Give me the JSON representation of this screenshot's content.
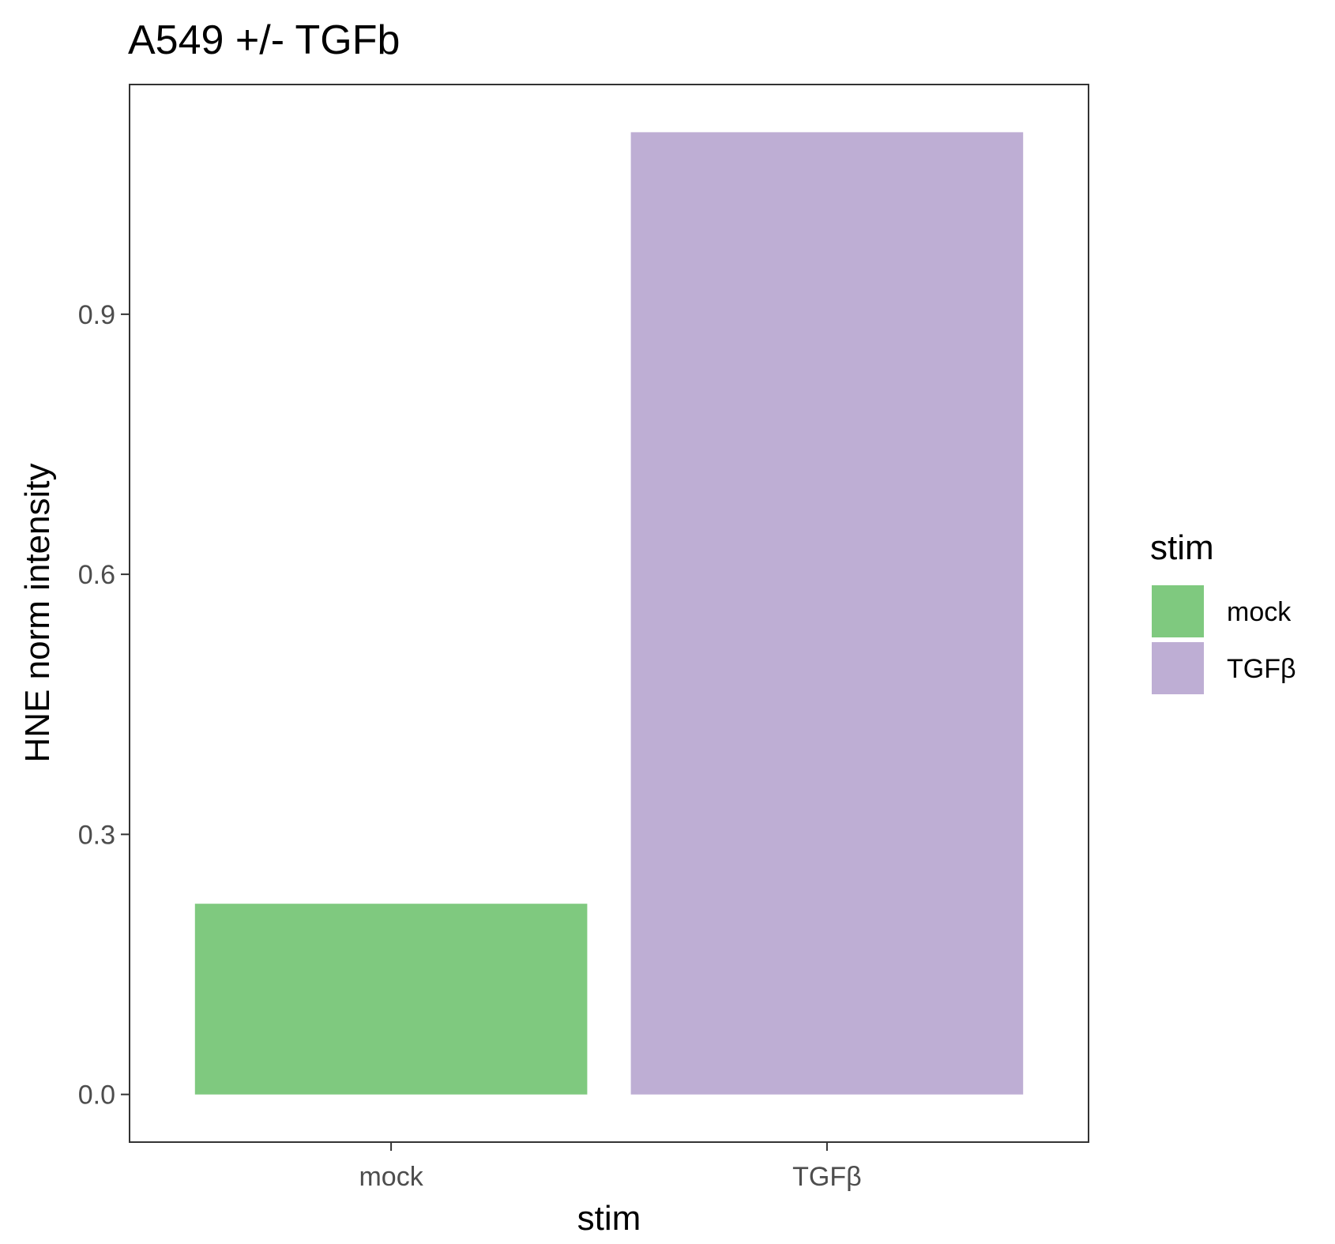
{
  "chart_data": {
    "type": "bar",
    "title": "A549 +/- TGFb",
    "xlabel": "stim",
    "ylabel": "HNE norm intensity",
    "categories": [
      "mock",
      "TGFβ"
    ],
    "values": [
      0.22,
      1.11
    ],
    "colors": [
      "#7fc97f",
      "#beaed4"
    ],
    "ylim": [
      -0.055,
      1.165
    ],
    "yticks": [
      0.0,
      0.3,
      0.6,
      0.9
    ],
    "ytick_labels": [
      "0.0",
      "0.3",
      "0.6",
      "0.9"
    ],
    "grid": false,
    "legend": {
      "title": "stim",
      "placement": "right",
      "entries": [
        "mock",
        "TGFβ"
      ]
    }
  }
}
